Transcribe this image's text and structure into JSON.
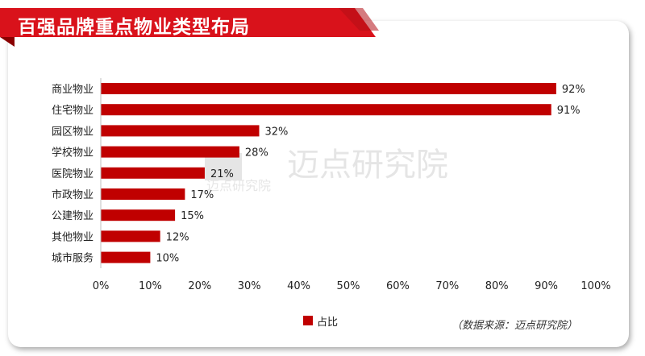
{
  "title": "百强品牌重点物业类型布局",
  "legend": {
    "label": "占比",
    "color": "#c00000"
  },
  "source": "（数据来源：迈点研究院）",
  "watermark": {
    "text": "迈点研究院",
    "small_text": "迈点研究院"
  },
  "colors": {
    "accent": "#c00000",
    "banner": "#d9121b"
  },
  "chart_data": {
    "type": "bar",
    "orientation": "horizontal",
    "categories": [
      "商业物业",
      "住宅物业",
      "园区物业",
      "学校物业",
      "医院物业",
      "市政物业",
      "公建物业",
      "其他物业",
      "城市服务"
    ],
    "values": [
      92,
      91,
      32,
      28,
      21,
      17,
      15,
      12,
      10
    ],
    "value_labels": [
      "92%",
      "91%",
      "32%",
      "28%",
      "21%",
      "17%",
      "15%",
      "12%",
      "10%"
    ],
    "x_ticks": [
      "0%",
      "10%",
      "20%",
      "30%",
      "40%",
      "50%",
      "60%",
      "70%",
      "80%",
      "90%",
      "100%"
    ],
    "xlim": [
      0,
      100
    ],
    "series": [
      {
        "name": "占比",
        "values": [
          92,
          91,
          32,
          28,
          21,
          17,
          15,
          12,
          10
        ]
      }
    ],
    "grid": false,
    "legend_position": "bottom"
  }
}
